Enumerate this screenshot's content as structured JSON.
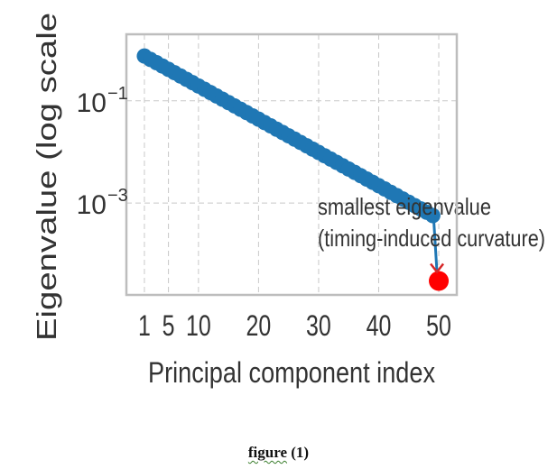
{
  "chart_data": {
    "type": "scatter",
    "xlabel": "Principal component index",
    "ylabel": "Eigenvalue (log scale",
    "yscale": "log",
    "grid": true,
    "xlim": [
      -2,
      53
    ],
    "ylim": [
      1.6e-05,
      2.0
    ],
    "xticks": [
      1,
      5,
      10,
      20,
      30,
      40,
      50
    ],
    "yticks": [
      {
        "value": 0.1,
        "base": "10",
        "exp": "−1"
      },
      {
        "value": 0.001,
        "base": "10",
        "exp": "−3"
      }
    ],
    "series": [
      {
        "color": "#1f77b4",
        "style": "line-markers",
        "x_start": 1,
        "x_end": 49,
        "y_start": 0.75,
        "y_end": 0.00057
      },
      {
        "color": "#ff0000",
        "style": "marker",
        "points": [
          {
            "x": 50,
            "y": 3e-05
          }
        ]
      }
    ],
    "annotation": {
      "lines": [
        "smallest eigenvalue",
        "(timing-induced curvature)"
      ],
      "arrow_to": {
        "x": 50,
        "y": 3e-05
      },
      "arrow_color": "#1f77b4"
    }
  },
  "caption": {
    "word": "figure",
    "number": "(1)"
  }
}
